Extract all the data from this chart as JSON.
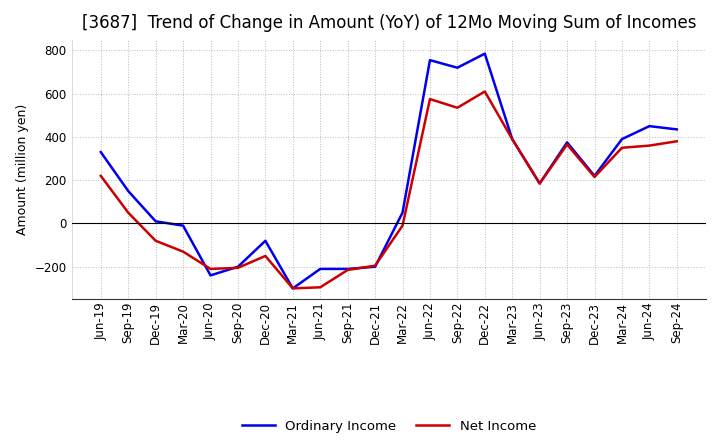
{
  "title": "[3687]  Trend of Change in Amount (YoY) of 12Mo Moving Sum of Incomes",
  "ylabel": "Amount (million yen)",
  "x_labels": [
    "Jun-19",
    "Sep-19",
    "Dec-19",
    "Mar-20",
    "Jun-20",
    "Sep-20",
    "Dec-20",
    "Mar-21",
    "Jun-21",
    "Sep-21",
    "Dec-21",
    "Mar-22",
    "Jun-22",
    "Sep-22",
    "Dec-22",
    "Mar-23",
    "Jun-23",
    "Sep-23",
    "Dec-23",
    "Mar-24",
    "Jun-24",
    "Sep-24"
  ],
  "ordinary_income": [
    330,
    150,
    10,
    -10,
    -240,
    -200,
    -80,
    -300,
    -210,
    -210,
    -200,
    50,
    755,
    720,
    785,
    390,
    185,
    375,
    220,
    390,
    450,
    435
  ],
  "net_income": [
    220,
    50,
    -80,
    -130,
    -210,
    -205,
    -150,
    -300,
    -295,
    -215,
    -195,
    -10,
    575,
    535,
    610,
    390,
    185,
    365,
    215,
    350,
    360,
    380
  ],
  "ordinary_color": "#0000ee",
  "net_color": "#cc0000",
  "line_width": 1.8,
  "ylim": [
    -350,
    850
  ],
  "yticks": [
    -200,
    0,
    200,
    400,
    600,
    800
  ],
  "grid_color": "#bbbbbb",
  "background_color": "#ffffff",
  "legend_ordinary": "Ordinary Income",
  "legend_net": "Net Income",
  "title_fontsize": 12,
  "axis_fontsize": 9,
  "tick_fontsize": 8.5
}
